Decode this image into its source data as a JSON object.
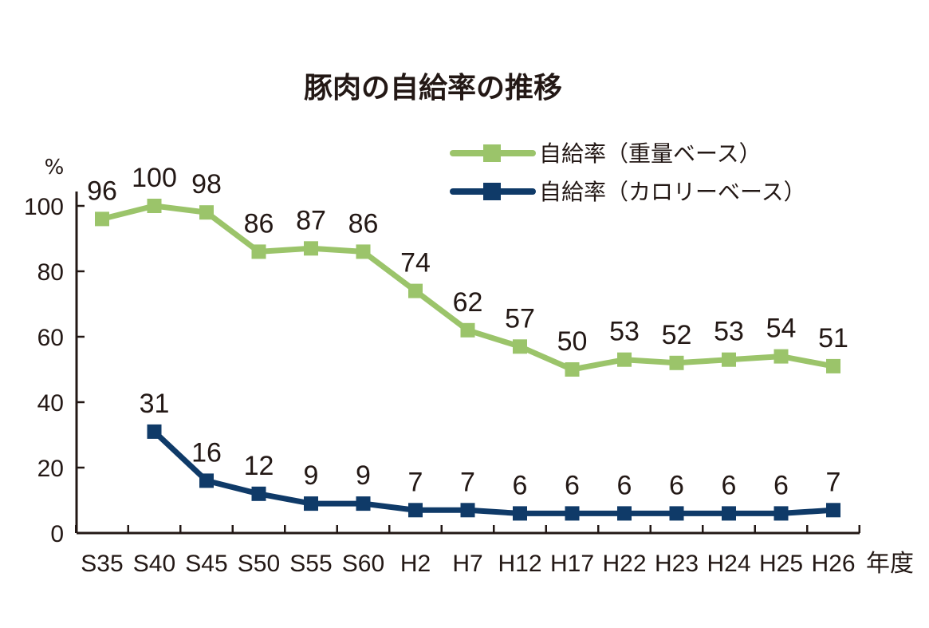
{
  "chart_data": {
    "type": "line",
    "title": "豚肉の自給率の推移",
    "y_unit": "%",
    "x_unit": "年度",
    "categories": [
      "S35",
      "S40",
      "S45",
      "S50",
      "S55",
      "S60",
      "H2",
      "H7",
      "H12",
      "H17",
      "H22",
      "H23",
      "H24",
      "H25",
      "H26"
    ],
    "ylim": [
      0,
      100
    ],
    "yticks": [
      0,
      20,
      40,
      60,
      80,
      100
    ],
    "grid": false,
    "legend_position": "top-right",
    "series": [
      {
        "name": "自給率（重量ベース）",
        "color": "#9bc46a",
        "marker": "square",
        "values": [
          96,
          100,
          98,
          86,
          87,
          86,
          74,
          62,
          57,
          50,
          53,
          52,
          53,
          54,
          51
        ]
      },
      {
        "name": "自給率（カロリーベース）",
        "color": "#0f3a68",
        "marker": "square",
        "values": [
          null,
          31,
          16,
          12,
          9,
          9,
          7,
          7,
          6,
          6,
          6,
          6,
          6,
          6,
          7
        ]
      }
    ]
  }
}
